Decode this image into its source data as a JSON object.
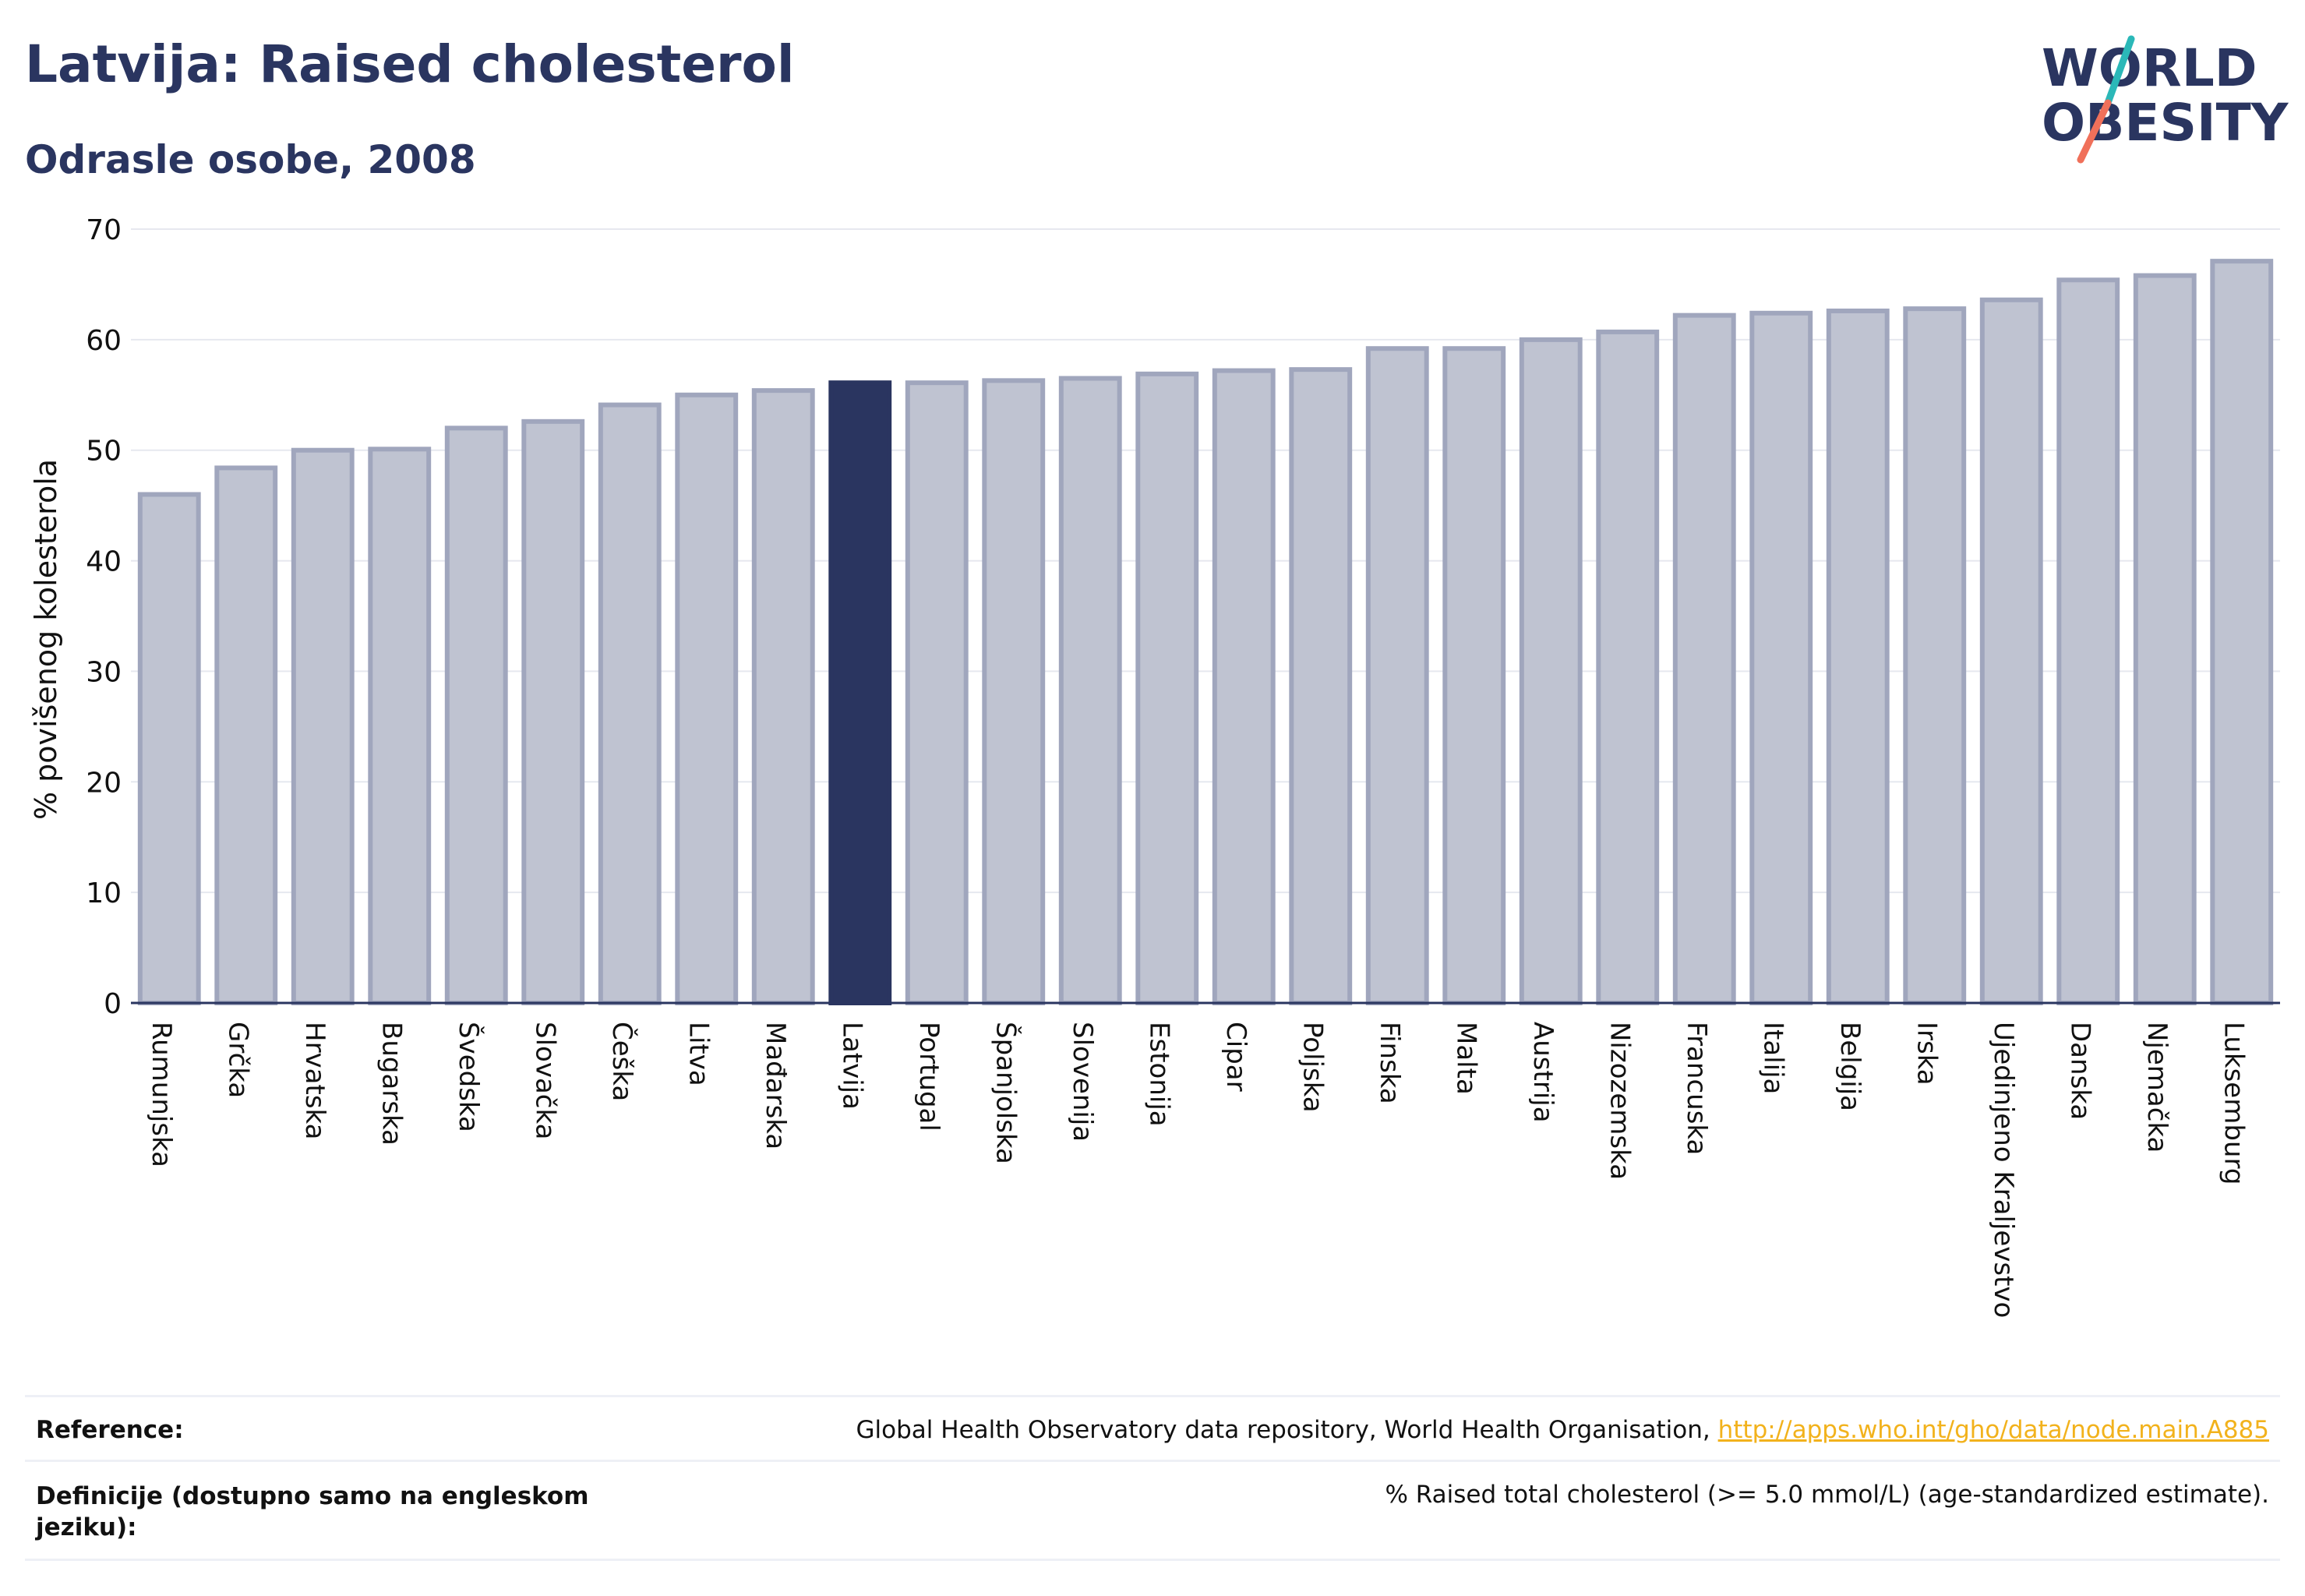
{
  "header": {
    "title": "Latvija: Raised cholesterol",
    "subtitle": "Odrasle osobe, 2008"
  },
  "logo": {
    "line1": "WORLD",
    "line2": "OBESITY",
    "color_text": "#2a3560",
    "color_slash_top": "#2bb8b8",
    "color_slash_bottom": "#f0705a"
  },
  "colors": {
    "bar": "#bfc3d1",
    "bar_border": "#a0a6bd",
    "highlight": "#2a3560",
    "grid": "#e6e8ef",
    "axis_text": "#111111"
  },
  "chart_data": {
    "type": "bar",
    "ylabel": "% povišenog kolesterola",
    "ylim": [
      0,
      70
    ],
    "yticks": [
      0,
      10,
      20,
      30,
      40,
      50,
      60,
      70
    ],
    "highlight": "Latvija",
    "grid": true,
    "categories": [
      "Rumunjska",
      "Grčka",
      "Hrvatska",
      "Bugarska",
      "Švedska",
      "Slovačka",
      "Češka",
      "Litva",
      "Mađarska",
      "Latvija",
      "Portugal",
      "Španjolska",
      "Slovenija",
      "Estonija",
      "Cipar",
      "Poljska",
      "Finska",
      "Malta",
      "Austrija",
      "Nizozemska",
      "Francuska",
      "Italija",
      "Belgija",
      "Irska",
      "Ujedinjeno Kraljevstvo",
      "Danska",
      "Njemačka",
      "Luksemburg"
    ],
    "values": [
      46.0,
      48.4,
      50.0,
      50.1,
      52.0,
      52.6,
      54.1,
      55.0,
      55.4,
      56.1,
      56.1,
      56.3,
      56.5,
      56.9,
      57.2,
      57.3,
      59.2,
      59.2,
      60.0,
      60.7,
      62.2,
      62.4,
      62.6,
      62.8,
      63.6,
      65.4,
      65.8,
      67.1
    ]
  },
  "reference": {
    "label": "Reference:",
    "text": "Global Health Observatory data repository, World Health Organisation, ",
    "link": "http://apps.who.int/gho/data/node.main.A885"
  },
  "definition": {
    "label_line1": "Definicije (dostupno samo na engleskom",
    "label_line2": "jeziku):",
    "text": "% Raised total cholesterol (>= 5.0 mmol/L) (age-standardized estimate)."
  }
}
